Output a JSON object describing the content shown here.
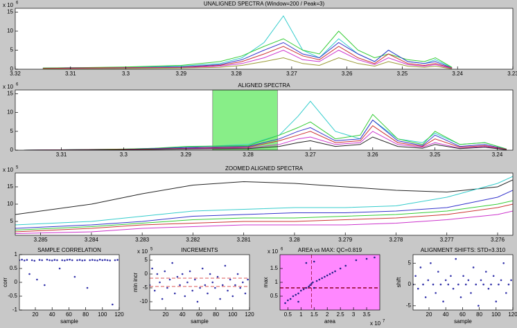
{
  "chart_data": [
    {
      "type": "line",
      "title": "UNALIGNED SPECTRA (Window=200 / Peak=3)",
      "y_exponent_base": "x 10",
      "y_exponent": "6",
      "xlim": [
        3.32,
        3.23
      ],
      "xticks": [
        3.32,
        3.31,
        3.3,
        3.29,
        3.28,
        3.27,
        3.26,
        3.25,
        3.24,
        3.23
      ],
      "ylim": [
        0,
        16
      ],
      "yticks": [
        0,
        5,
        10,
        15
      ],
      "x": [
        3.315,
        3.31,
        3.3,
        3.29,
        3.283,
        3.279,
        3.275,
        3.2715,
        3.268,
        3.265,
        3.2615,
        3.258,
        3.255,
        3.2525,
        3.249,
        3.246,
        3.244,
        3.241
      ],
      "series": [
        {
          "color": "#33cccc",
          "values": [
            0.3,
            0.4,
            0.5,
            0.8,
            1.5,
            3,
            7,
            14,
            5,
            3,
            8,
            4,
            2,
            5,
            2,
            1.5,
            2.5,
            0.4
          ]
        },
        {
          "color": "#33cc33",
          "values": [
            0.3,
            0.4,
            0.6,
            1,
            2,
            3.5,
            6,
            8,
            5,
            4,
            10,
            5,
            3,
            4,
            2.5,
            2,
            3,
            0.5
          ]
        },
        {
          "color": "#3333cc",
          "values": [
            0.2,
            0.3,
            0.4,
            0.6,
            1.2,
            2.5,
            5,
            7,
            4,
            3,
            7,
            4,
            2,
            5,
            2,
            1.5,
            2,
            0.3
          ]
        },
        {
          "color": "#cc3333",
          "values": [
            0.2,
            0.3,
            0.4,
            0.5,
            1,
            2,
            4,
            6,
            3.5,
            2.5,
            6,
            3,
            1.5,
            4,
            1.5,
            1,
            1.5,
            0.3
          ]
        },
        {
          "color": "#cc33cc",
          "values": [
            0.1,
            0.2,
            0.3,
            0.4,
            0.8,
            1.5,
            3,
            5,
            2.5,
            2,
            5,
            2.5,
            1.2,
            3,
            1.2,
            0.8,
            1.2,
            0.2
          ]
        },
        {
          "color": "#999933",
          "values": [
            0.1,
            0.1,
            0.2,
            0.3,
            0.5,
            1,
            2,
            3,
            1.5,
            1,
            3,
            1.5,
            0.8,
            2,
            0.8,
            0.5,
            0.8,
            0.1
          ]
        }
      ]
    },
    {
      "type": "line",
      "title": "ALIGNED SPECTRA",
      "y_exponent_base": "x 10",
      "y_exponent": "6",
      "xlim": [
        3.3174,
        3.2375
      ],
      "xticks": [
        3.31,
        3.3,
        3.29,
        3.28,
        3.27,
        3.26,
        3.25,
        3.24
      ],
      "ylim": [
        0,
        16
      ],
      "yticks": [
        0,
        5,
        10,
        15
      ],
      "highlight": {
        "range": [
          3.2857,
          3.2753
        ],
        "color": "#88ee88"
      },
      "x": [
        3.316,
        3.31,
        3.3,
        3.295,
        3.29,
        3.28,
        3.275,
        3.272,
        3.27,
        3.266,
        3.262,
        3.26,
        3.256,
        3.252,
        3.25,
        3.246,
        3.242,
        3.2385
      ],
      "series": [
        {
          "color": "#33cccc",
          "values": [
            0,
            0.1,
            0.3,
            0.5,
            0.8,
            1.5,
            4,
            9,
            13,
            5,
            3,
            8,
            3,
            2,
            4.5,
            1.5,
            2,
            0.3
          ]
        },
        {
          "color": "#33cc33",
          "values": [
            0,
            0.1,
            0.3,
            0.5,
            1,
            1.2,
            4,
            6,
            7.5,
            3,
            4,
            9.5,
            3,
            1.5,
            5,
            1.5,
            2,
            0.3
          ]
        },
        {
          "color": "#3333cc",
          "values": [
            0,
            0.1,
            0.2,
            0.4,
            0.7,
            1,
            3,
            5,
            6,
            2.5,
            3,
            8,
            2.5,
            1.2,
            4,
            1,
            1.5,
            0.2
          ]
        },
        {
          "color": "#cc3333",
          "values": [
            0,
            0.1,
            0.2,
            0.3,
            0.5,
            0.8,
            2.5,
            4,
            5,
            2,
            2.5,
            6.5,
            2,
            1,
            3,
            0.8,
            1.2,
            0.2
          ]
        },
        {
          "color": "#cc33cc",
          "values": [
            0,
            0.05,
            0.1,
            0.2,
            0.4,
            0.6,
            1.5,
            3,
            3.5,
            1.5,
            2,
            5,
            1.5,
            0.8,
            2,
            0.5,
            1,
            0.1
          ]
        },
        {
          "color": "#222222",
          "values": [
            0,
            0.05,
            0.1,
            0.2,
            0.3,
            0.4,
            1,
            2,
            2.5,
            1,
            1.5,
            3.5,
            1,
            0.5,
            1.5,
            0.4,
            0.8,
            0.1
          ]
        }
      ]
    },
    {
      "type": "line",
      "title": "ZOOMED ALIGNED SPECTRA",
      "y_exponent_base": "x 10",
      "y_exponent": "5",
      "xlim": [
        3.2855,
        3.2757
      ],
      "xticks": [
        3.285,
        3.284,
        3.283,
        3.282,
        3.281,
        3.28,
        3.279,
        3.278,
        3.277,
        3.276
      ],
      "ylim": [
        1,
        19
      ],
      "yticks": [
        5,
        10,
        15
      ],
      "x": [
        3.2855,
        3.284,
        3.283,
        3.282,
        3.281,
        3.28,
        3.279,
        3.278,
        3.277,
        3.276,
        3.2757
      ],
      "series": [
        {
          "color": "#222222",
          "values": [
            7,
            10,
            13,
            15.5,
            16.5,
            16,
            15,
            14,
            13.5,
            15,
            17
          ]
        },
        {
          "color": "#33cccc",
          "values": [
            4,
            5,
            6.5,
            8,
            8.5,
            9,
            9,
            9.5,
            12,
            16,
            18
          ]
        },
        {
          "color": "#3333cc",
          "values": [
            3,
            4,
            5,
            6.5,
            7,
            7.5,
            7.5,
            8,
            9,
            12,
            14
          ]
        },
        {
          "color": "#33cc33",
          "values": [
            2.5,
            3.5,
            4.5,
            5.5,
            6,
            6,
            6.5,
            7,
            8,
            10,
            11
          ]
        },
        {
          "color": "#cc3333",
          "values": [
            2,
            3,
            4,
            4.5,
            5,
            5,
            5.5,
            6,
            7,
            9,
            10
          ]
        },
        {
          "color": "#cc33cc",
          "values": [
            1.5,
            2,
            3,
            3.5,
            4,
            4,
            4,
            4.5,
            5.5,
            7,
            8
          ]
        }
      ]
    },
    {
      "type": "scatter",
      "title": "SAMPLE CORRELATION",
      "xlabel": "sample",
      "ylabel": "corr",
      "xlim": [
        1,
        120
      ],
      "xticks": [
        20,
        40,
        60,
        80,
        100,
        120
      ],
      "ylim": [
        -1,
        1
      ],
      "yticks": [
        -1,
        -0.5,
        0,
        0.5,
        1
      ],
      "color": "#3333aa",
      "x": [
        1,
        4,
        7,
        10,
        13,
        16,
        19,
        22,
        25,
        28,
        31,
        34,
        37,
        40,
        43,
        46,
        49,
        52,
        55,
        58,
        61,
        64,
        67,
        70,
        73,
        76,
        79,
        82,
        85,
        88,
        91,
        94,
        97,
        100,
        103,
        106,
        109,
        112,
        115,
        118
      ],
      "values": [
        0.8,
        0.82,
        0.79,
        0.81,
        0.3,
        0.8,
        0.78,
        0.1,
        0.81,
        0.8,
        -0.1,
        0.82,
        0.8,
        0.79,
        0.81,
        0.8,
        0.5,
        0.8,
        0.79,
        0.81,
        0.82,
        0.8,
        0.2,
        0.8,
        0.81,
        0.79,
        0.8,
        -0.2,
        0.8,
        0.81,
        0.8,
        0.79,
        0.82,
        0.8,
        0.81,
        0.8,
        0.79,
        -0.8,
        0.8,
        0.81
      ]
    },
    {
      "type": "scatter",
      "title": "INCREMENTS",
      "xlabel": "sample",
      "ylabel": "min incr",
      "y_exponent_base": "x 10",
      "y_exponent": "5",
      "xlim": [
        1,
        120
      ],
      "xticks": [
        20,
        40,
        60,
        80,
        100,
        120
      ],
      "ylim": [
        -13,
        7
      ],
      "yticks": [
        -10,
        -5,
        0,
        5
      ],
      "color": "#3333aa",
      "ref_lines": [
        {
          "axis": "y",
          "value": -1.5,
          "color": "#dd5555"
        },
        {
          "axis": "y",
          "value": -4.5,
          "color": "#dd5555"
        }
      ],
      "x": [
        1,
        4,
        7,
        10,
        13,
        16,
        19,
        22,
        25,
        28,
        31,
        34,
        37,
        40,
        43,
        46,
        49,
        52,
        55,
        58,
        61,
        64,
        67,
        70,
        73,
        76,
        79,
        82,
        85,
        88,
        91,
        94,
        97,
        100,
        103,
        106,
        109,
        112,
        115,
        118
      ],
      "values": [
        -4,
        2,
        -6,
        0,
        -3,
        -9,
        1,
        -5,
        -2,
        4,
        -7,
        -1,
        -4,
        0,
        -8,
        -3,
        1,
        -6,
        -2,
        -10,
        -5,
        2,
        -4,
        -7,
        0,
        -3,
        -5,
        -1,
        -9,
        -4,
        3,
        -6,
        -2,
        -8,
        -4,
        0,
        -5,
        -3,
        -7,
        -2
      ]
    },
    {
      "type": "scatter",
      "title": "AREA vs MAX: QC=0.819",
      "xlabel": "area",
      "ylabel": "max",
      "y_exponent_base": "x 10",
      "y_exponent": "6",
      "x_exponent_base": "x 10",
      "x_exponent": "7",
      "xlim": [
        0.2,
        4
      ],
      "xticks": [
        0.5,
        1,
        1.5,
        2,
        2.5,
        3,
        3.5
      ],
      "ylim": [
        0,
        2
      ],
      "yticks": [
        0.5,
        1,
        1.5
      ],
      "background": "#ff88ff",
      "color": "#222288",
      "ref_lines": [
        {
          "axis": "x",
          "value": 1.4,
          "color": "#aa2255"
        },
        {
          "axis": "y",
          "value": 0.8,
          "color": "#aa2255"
        }
      ],
      "x": [
        0.4,
        0.5,
        0.6,
        0.7,
        0.8,
        0.9,
        1.0,
        1.1,
        1.2,
        1.3,
        1.35,
        1.4,
        1.45,
        1.5,
        1.6,
        1.7,
        1.8,
        1.9,
        2.0,
        2.1,
        2.2,
        2.3,
        2.5,
        2.7,
        1.2,
        1.5,
        0.9,
        3.1,
        3.5,
        3.8
      ],
      "values": [
        0.25,
        0.35,
        0.4,
        0.5,
        0.55,
        0.6,
        0.7,
        0.75,
        0.8,
        0.85,
        0.9,
        0.95,
        1.0,
        0.8,
        1.05,
        1.1,
        1.15,
        1.2,
        1.25,
        1.3,
        1.35,
        1.4,
        1.5,
        1.6,
        1.7,
        1.75,
        0.3,
        1.8,
        1.85,
        1.9
      ]
    },
    {
      "type": "scatter",
      "title": "ALIGNMENT SHIFTS: STD=3.310",
      "xlabel": "sample",
      "ylabel": "shift",
      "xlim": [
        1,
        120
      ],
      "xticks": [
        20,
        40,
        60,
        80,
        100,
        120
      ],
      "ylim": [
        -6,
        7
      ],
      "yticks": [
        -5,
        0,
        5
      ],
      "color": "#3333aa",
      "x": [
        1,
        4,
        7,
        10,
        13,
        16,
        19,
        22,
        25,
        28,
        31,
        34,
        37,
        40,
        43,
        46,
        49,
        52,
        55,
        58,
        61,
        64,
        67,
        70,
        73,
        76,
        79,
        82,
        85,
        88,
        91,
        94,
        97,
        100,
        103,
        106,
        109,
        112,
        115,
        118
      ],
      "values": [
        0,
        2,
        -1,
        4,
        0,
        -3,
        1,
        5,
        0,
        -2,
        3,
        0,
        -4,
        1,
        0,
        2,
        -1,
        6,
        0,
        -3,
        2,
        0,
        1,
        -2,
        4,
        0,
        -5,
        1,
        0,
        3,
        -1,
        0,
        2,
        -4,
        0,
        1,
        5,
        -2,
        0,
        1
      ]
    }
  ]
}
